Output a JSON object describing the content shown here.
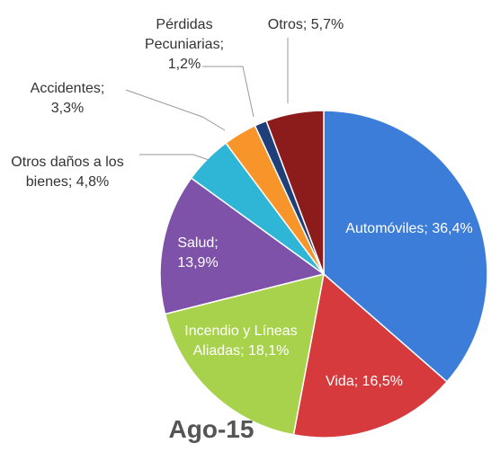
{
  "chart_data": {
    "type": "pie",
    "title": "Ago-15",
    "categories": [
      "Automóviles;",
      "Vida;",
      "Incendio y Líneas Aliadas;",
      "Salud;",
      "Otros daños a los bienes;",
      "Accidentes;",
      "Pérdidas Pecuniarias;",
      "Otros;"
    ],
    "values": [
      36.4,
      16.5,
      18.1,
      13.9,
      4.8,
      3.3,
      1.2,
      5.7
    ],
    "value_labels": [
      "36,4%",
      "16,5%",
      "18,1%",
      "13,9%",
      "4,8%",
      "3,3%",
      "1,2%",
      "5,7%"
    ],
    "colors": [
      "#3b7dd8",
      "#d63a3c",
      "#a8d24c",
      "#7d52a8",
      "#2fb5d6",
      "#f7952a",
      "#1f3f7a",
      "#8c1c1c"
    ]
  }
}
